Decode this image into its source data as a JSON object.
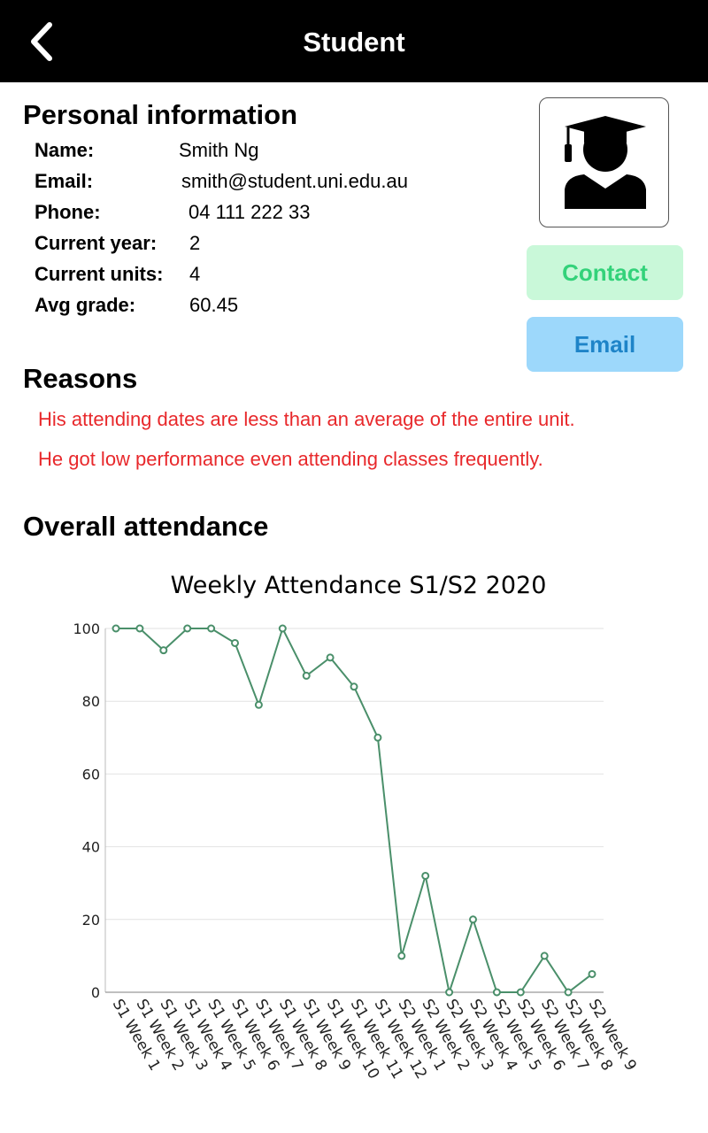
{
  "header": {
    "title": "Student"
  },
  "personal": {
    "title": "Personal information",
    "fields": [
      {
        "label": "Name:",
        "value": "Smith Ng"
      },
      {
        "label": "Email:",
        "value": "smith@student.uni.edu.au"
      },
      {
        "label": "Phone:",
        "value": "04 111 222 33"
      },
      {
        "label": "Current year:",
        "value": "2"
      },
      {
        "label": "Current units:",
        "value": "4"
      },
      {
        "label": "Avg grade:",
        "value": "60.45"
      }
    ]
  },
  "actions": {
    "contact_label": "Contact",
    "email_label": "Email"
  },
  "reasons": {
    "title": "Reasons",
    "items": [
      "His attending dates are less than an average of the entire unit.",
      "He got low performance even attending classes frequently."
    ]
  },
  "attendance": {
    "title": "Overall attendance"
  },
  "colors": {
    "line": "#4a8f6a",
    "reason_text": "#e8282b",
    "contact_bg": "#c9f8d9",
    "email_bg": "#9dd8fb"
  },
  "chart_data": {
    "type": "line",
    "title": "Weekly Attendance S1/S2 2020",
    "xlabel": "",
    "ylabel": "",
    "ylim": [
      0,
      100
    ],
    "yticks": [
      0,
      20,
      40,
      60,
      80,
      100
    ],
    "grid": true,
    "categories": [
      "S1 Week 1",
      "S1 Week 2",
      "S1 Week 3",
      "S1 Week 4",
      "S1 Week 5",
      "S1 Week 6",
      "S1 Week 7",
      "S1 Week 8",
      "S1 Week 9",
      "S1 Week 10",
      "S1 Week 11",
      "S1 Week 12",
      "S2 Week 1",
      "S2 Week 2",
      "S2 Week 3",
      "S2 Week 4",
      "S2 Week 5",
      "S2 Week 6",
      "S2 Week 7",
      "S2 Week 8",
      "S2 Week 9"
    ],
    "series": [
      {
        "name": "Attendance",
        "values": [
          100,
          100,
          94,
          100,
          100,
          96,
          79,
          100,
          87,
          92,
          84,
          70,
          10,
          32,
          0,
          20,
          0,
          0,
          10,
          0,
          5
        ]
      }
    ]
  }
}
